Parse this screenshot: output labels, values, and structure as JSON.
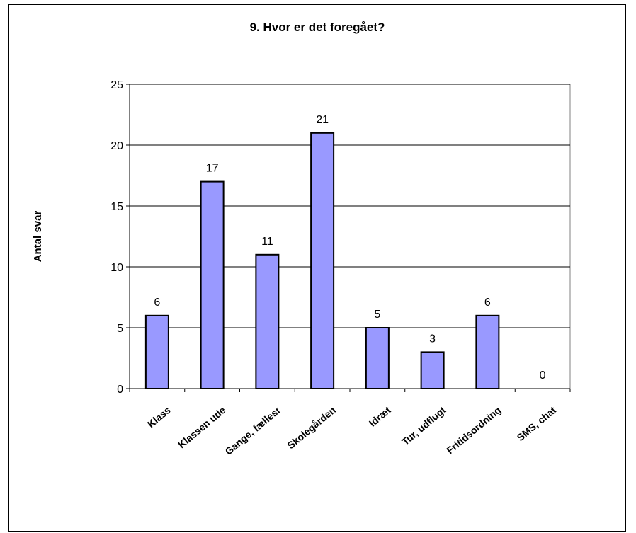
{
  "chart_data": {
    "type": "bar",
    "title": "9. Hvor er det foregået?",
    "ylabel": "Antal svar",
    "xlabel": "",
    "categories": [
      "Klass",
      "Klassen ude",
      "Gange, fællesr",
      "Skolegården",
      "Idræt",
      "Tur, udflugt",
      "Fritidsordning",
      "SMS, chat"
    ],
    "values": [
      6,
      17,
      11,
      21,
      5,
      3,
      6,
      0
    ],
    "ylim": [
      0,
      25
    ],
    "yticks": [
      "0",
      "5",
      "10",
      "15",
      "20",
      "25"
    ],
    "grid": true,
    "bar_color": "#9999ff"
  }
}
